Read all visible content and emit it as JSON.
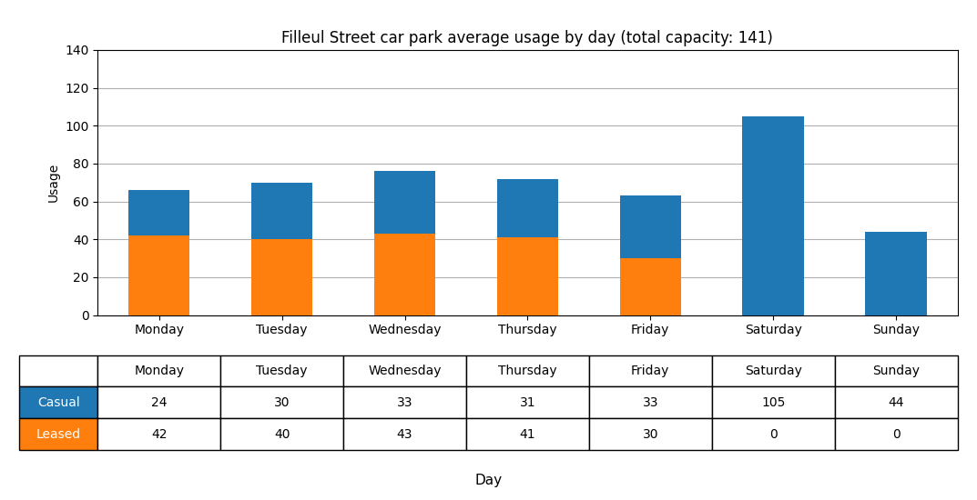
{
  "chart_data": {
    "type": "bar",
    "title": "Filleul Street car park average usage by day (total capacity: 141)",
    "x_label": "Day",
    "y_label": "Usage",
    "categories": [
      "Monday",
      "Tuesday",
      "Wednesday",
      "Thursday",
      "Friday",
      "Saturday",
      "Sunday"
    ],
    "series": [
      {
        "name": "Casual",
        "values": [
          24,
          30,
          33,
          31,
          33,
          105,
          44
        ]
      },
      {
        "name": "Leased",
        "values": [
          42,
          40,
          43,
          41,
          30,
          0,
          0
        ]
      }
    ],
    "stacked": true,
    "ylim": [
      0,
      140
    ],
    "yticks": [
      0,
      20,
      40,
      60,
      80,
      100,
      120,
      140
    ],
    "grid": true
  }
}
